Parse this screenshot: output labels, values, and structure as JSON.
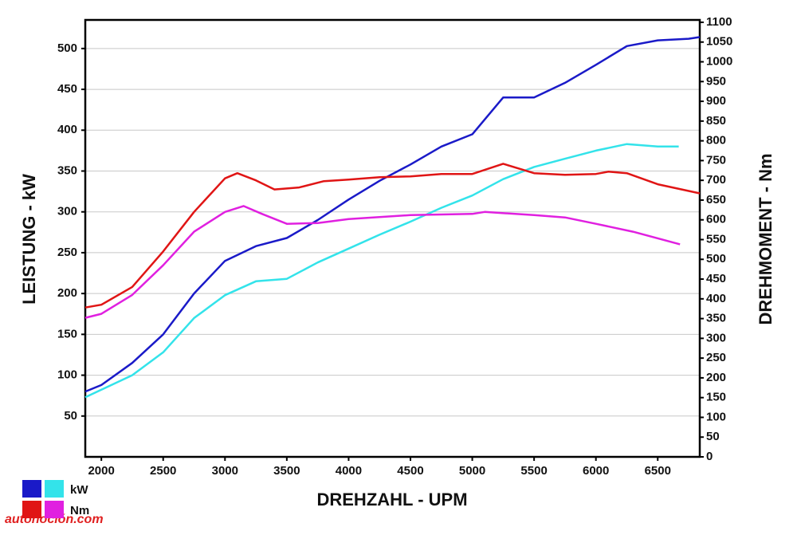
{
  "chart_data": {
    "type": "line",
    "x_label": "DREHZAHL - UPM",
    "y_label": "LEISTUNG - kW",
    "y2_label": "DREHMOMENT - Nm",
    "xlim": [
      1870,
      6840
    ],
    "xticks": [
      2000,
      2500,
      3000,
      3500,
      4000,
      4500,
      5000,
      5500,
      6000,
      6500
    ],
    "ylim": [
      0,
      535
    ],
    "yticks": [
      50,
      100,
      150,
      200,
      250,
      300,
      350,
      400,
      450,
      500
    ],
    "y2lim": [
      0,
      1106
    ],
    "y2ticks": [
      0,
      50,
      100,
      150,
      200,
      250,
      300,
      350,
      400,
      450,
      500,
      550,
      600,
      650,
      700,
      750,
      800,
      850,
      900,
      950,
      1000,
      1050,
      1100
    ],
    "grid": true,
    "legend": [
      {
        "label": "kW",
        "colors": [
          "#1a1ac8",
          "#33e3ea"
        ]
      },
      {
        "label": "Nm",
        "colors": [
          "#e01515",
          "#e020e0"
        ]
      }
    ],
    "watermark": "autonoción.com",
    "series": [
      {
        "color": "#1a1ac8",
        "x": [
          1870,
          2000,
          2250,
          2500,
          2750,
          3000,
          3250,
          3500,
          3750,
          4000,
          4250,
          4500,
          4750,
          5000,
          5250,
          5500,
          5750,
          6000,
          6250,
          6500,
          6750,
          6840
        ],
        "values": [
          80,
          88,
          115,
          150,
          200,
          240,
          258,
          268,
          290,
          315,
          338,
          358,
          380,
          395,
          440,
          440,
          458,
          480,
          503,
          510,
          512,
          514
        ]
      },
      {
        "color": "#33e3ea",
        "x": [
          1870,
          2250,
          2500,
          2750,
          3000,
          3250,
          3500,
          3750,
          4000,
          4250,
          4500,
          4750,
          5000,
          5250,
          5500,
          5750,
          6000,
          6250,
          6500,
          6670
        ],
        "values": [
          73,
          100,
          128,
          170,
          198,
          215,
          218,
          238,
          255,
          272,
          288,
          305,
          320,
          340,
          355,
          365,
          375,
          383,
          380,
          380
        ]
      },
      {
        "color": "#e01515",
        "axis": "y2",
        "x": [
          1870,
          2000,
          2250,
          2500,
          2750,
          3000,
          3100,
          3250,
          3400,
          3600,
          3800,
          4000,
          4250,
          4500,
          4750,
          5000,
          5250,
          5500,
          5750,
          6000,
          6100,
          6250,
          6500,
          6840
        ],
        "values": [
          378,
          385,
          430,
          520,
          620,
          705,
          718,
          700,
          677,
          682,
          698,
          702,
          708,
          710,
          716,
          716,
          742,
          718,
          714,
          716,
          722,
          718,
          690,
          667
        ]
      },
      {
        "color": "#e020e0",
        "axis": "y2",
        "x": [
          1870,
          2000,
          2250,
          2500,
          2750,
          3000,
          3150,
          3300,
          3500,
          3750,
          4000,
          4500,
          5000,
          5100,
          5500,
          5750,
          6000,
          6300,
          6680
        ],
        "values": [
          352,
          362,
          410,
          485,
          570,
          620,
          635,
          615,
          590,
          592,
          602,
          612,
          615,
          620,
          612,
          606,
          590,
          570,
          538
        ]
      }
    ]
  }
}
